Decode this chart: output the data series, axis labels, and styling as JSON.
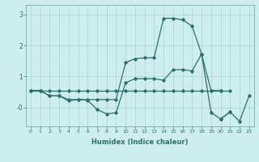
{
  "bg_color": "#ceeeed",
  "grid_color": "#aad4d4",
  "line_color": "#2d6e6e",
  "xlabel": "Humidex (Indice chaleur)",
  "xlim": [
    -0.5,
    23.5
  ],
  "ylim": [
    -0.6,
    3.3
  ],
  "xticks": [
    0,
    1,
    2,
    3,
    4,
    5,
    6,
    7,
    8,
    9,
    10,
    11,
    12,
    13,
    14,
    15,
    16,
    17,
    18,
    19,
    20,
    21,
    22,
    23
  ],
  "yticks": [
    0,
    1,
    2,
    3
  ],
  "ytick_labels": [
    "-0",
    "1",
    "2",
    "3"
  ],
  "line1_x": [
    0,
    1,
    2,
    3,
    4,
    5,
    6,
    7,
    8,
    9,
    10,
    11,
    12,
    13,
    14,
    15,
    16,
    17,
    18,
    19,
    20,
    21
  ],
  "line1_y": [
    0.55,
    0.55,
    0.55,
    0.55,
    0.55,
    0.55,
    0.55,
    0.55,
    0.55,
    0.55,
    0.55,
    0.55,
    0.55,
    0.55,
    0.55,
    0.55,
    0.55,
    0.55,
    0.55,
    0.55,
    0.55,
    0.55
  ],
  "line2_x": [
    0,
    1,
    2,
    3,
    4,
    5,
    6,
    7,
    8,
    9,
    10,
    11,
    12,
    13,
    14,
    15,
    16,
    17,
    18,
    19,
    20,
    21,
    22,
    23
  ],
  "line2_y": [
    0.55,
    0.55,
    0.38,
    0.38,
    0.22,
    0.26,
    0.24,
    -0.06,
    -0.2,
    -0.16,
    0.8,
    0.93,
    0.93,
    0.93,
    0.88,
    1.22,
    1.22,
    1.18,
    1.72,
    -0.16,
    -0.36,
    -0.14,
    null,
    null
  ],
  "line3_x": [
    0,
    1,
    2,
    3,
    4,
    5,
    6,
    7,
    8,
    9,
    10,
    11,
    12,
    13,
    14,
    15,
    16,
    17,
    18,
    19,
    20
  ],
  "line3_y": [
    0.55,
    0.55,
    0.38,
    0.38,
    0.26,
    0.26,
    0.26,
    0.26,
    0.26,
    0.26,
    1.45,
    1.57,
    1.6,
    1.6,
    2.87,
    2.87,
    2.82,
    2.62,
    1.72,
    0.55,
    0.55
  ],
  "line4_x": [
    20,
    21,
    22,
    23
  ],
  "line4_y": [
    -0.36,
    -0.14,
    -0.44,
    0.38
  ]
}
